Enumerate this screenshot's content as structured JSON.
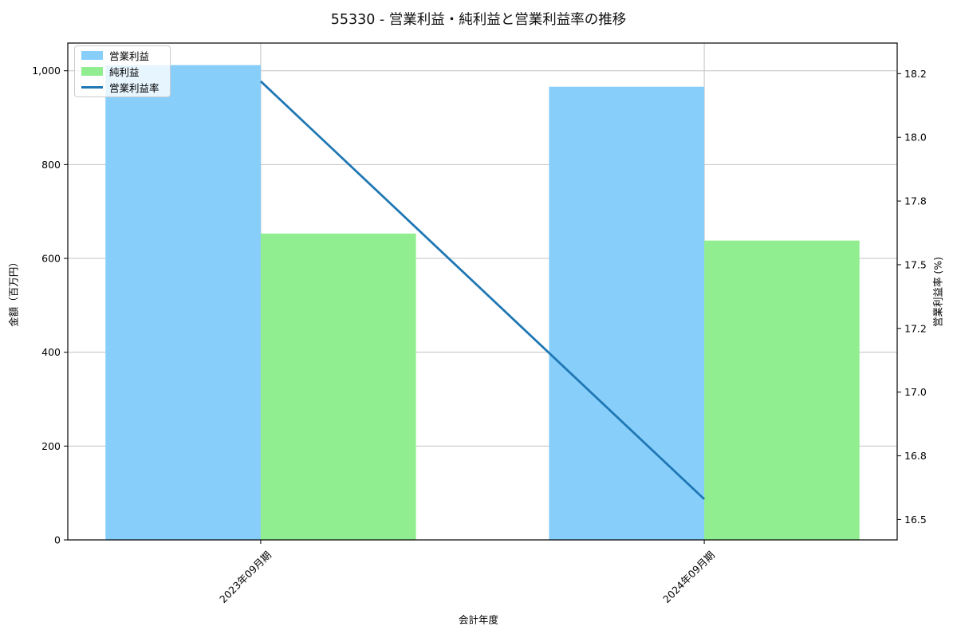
{
  "chart_data": {
    "type": "bar",
    "title": "55330 - 営業利益・純利益と営業利益率の推移",
    "categories": [
      "2023年09月期",
      "2024年09月期"
    ],
    "series": [
      {
        "name": "営業利益",
        "type": "bar",
        "axis": "left",
        "color": "#87CEFA",
        "values": [
          1012,
          966
        ]
      },
      {
        "name": "純利益",
        "type": "bar",
        "axis": "left",
        "color": "#90EE90",
        "values": [
          653,
          638
        ]
      },
      {
        "name": "営業利益率",
        "type": "line",
        "axis": "right",
        "color": "#1F77B4",
        "values": [
          18.22,
          16.58
        ]
      }
    ],
    "xlabel": "会計年度",
    "ylabel_left": "金額（百万円）",
    "ylabel_right": "営業利益率 (%)",
    "ylim_left": [
      0,
      1059
    ],
    "ylim_right": [
      16.42,
      18.37
    ],
    "yticks_left": {
      "values": [
        0,
        200,
        400,
        600,
        800,
        1000
      ],
      "labels": [
        "0",
        "200",
        "400",
        "600",
        "800",
        "1,000"
      ]
    },
    "yticks_right": {
      "values": [
        16.5,
        16.75,
        17.0,
        17.25,
        17.5,
        17.75,
        18.0,
        18.25
      ],
      "labels": [
        "16.5",
        "16.8",
        "17.0",
        "17.2",
        "17.5",
        "17.8",
        "18.0",
        "18.2"
      ]
    },
    "grid": true,
    "legend_position": "upper left",
    "xtick_rotation": 45,
    "colors": {
      "grid": "#c3c3c3",
      "frame": "#000000",
      "background": "#ffffff"
    }
  }
}
